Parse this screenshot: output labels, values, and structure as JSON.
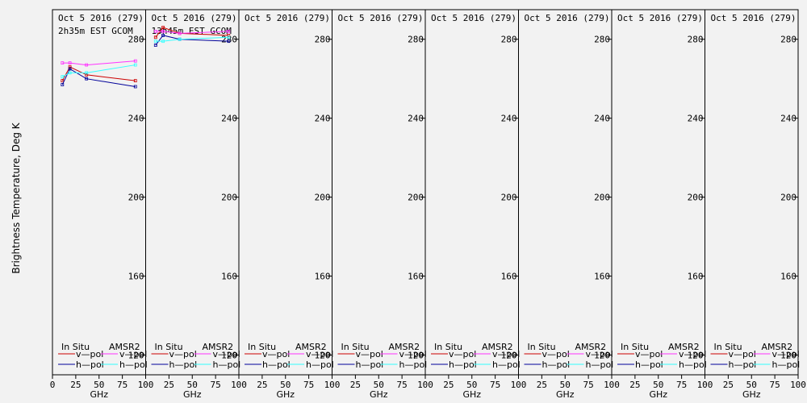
{
  "ylabel": "Brightness Temperature, Deg K",
  "xlabel": "GHz",
  "y_ticks": [
    120,
    160,
    200,
    240,
    280
  ],
  "x_ticks": [
    0,
    25,
    50,
    75,
    100
  ],
  "legend": {
    "col1_title": "In Situ",
    "col2_title": "AMSR2",
    "v_pol": "v—pol",
    "h_pol": "h—pol"
  },
  "colors": {
    "insitu_v": "#cc0000",
    "insitu_h": "#000099",
    "amsr2_v": "#ff33ff",
    "amsr2_h": "#33ffff",
    "background": "#f2f2f2"
  },
  "chart_data": {
    "type": "line",
    "xlim": [
      0,
      100
    ],
    "ylim": [
      110,
      295
    ],
    "panels": [
      {
        "title": "Oct 5 2016 (279)",
        "subtitle": "2h35m EST GCOM",
        "series": [
          {
            "name": "In Situ v-pol",
            "x": [
              10.65,
              18.7,
              36.5,
              89
            ],
            "y": [
              259,
              266,
              262,
              259
            ]
          },
          {
            "name": "In Situ h-pol",
            "x": [
              10.65,
              18.7,
              36.5,
              89
            ],
            "y": [
              257,
              265,
              260,
              256
            ]
          },
          {
            "name": "AMSR2 v-pol",
            "x": [
              10.65,
              18.7,
              36.5,
              89
            ],
            "y": [
              268,
              268,
              267,
              269
            ]
          },
          {
            "name": "AMSR2 h-pol",
            "x": [
              10.65,
              18.7,
              36.5,
              89
            ],
            "y": [
              261,
              263,
              263,
              267
            ]
          }
        ]
      },
      {
        "title": "Oct 5 2016 (279)",
        "subtitle": "13h45m EST GCOM",
        "series": [
          {
            "name": "In Situ v-pol",
            "x": [
              10.65,
              18.7,
              36.5,
              89
            ],
            "y": [
              281,
              286,
              283,
              282
            ]
          },
          {
            "name": "In Situ h-pol",
            "x": [
              10.65,
              18.7,
              36.5,
              89
            ],
            "y": [
              277,
              282,
              280,
              279
            ]
          },
          {
            "name": "AMSR2 v-pol",
            "x": [
              10.65,
              18.7,
              36.5,
              89
            ],
            "y": [
              284,
              284,
              283,
              284
            ]
          },
          {
            "name": "AMSR2 h-pol",
            "x": [
              10.65,
              18.7,
              36.5,
              89
            ],
            "y": [
              279,
              279,
              280,
              281
            ]
          }
        ]
      },
      {
        "title": "Oct 5 2016 (279)",
        "subtitle": "",
        "series": []
      },
      {
        "title": "Oct 5 2016 (279)",
        "subtitle": "",
        "series": []
      },
      {
        "title": "Oct 5 2016 (279)",
        "subtitle": "",
        "series": []
      },
      {
        "title": "Oct 5 2016 (279)",
        "subtitle": "",
        "series": []
      },
      {
        "title": "Oct 5 2016 (279)",
        "subtitle": "",
        "series": []
      },
      {
        "title": "Oct 5 2016 (279)",
        "subtitle": "",
        "series": []
      }
    ]
  }
}
